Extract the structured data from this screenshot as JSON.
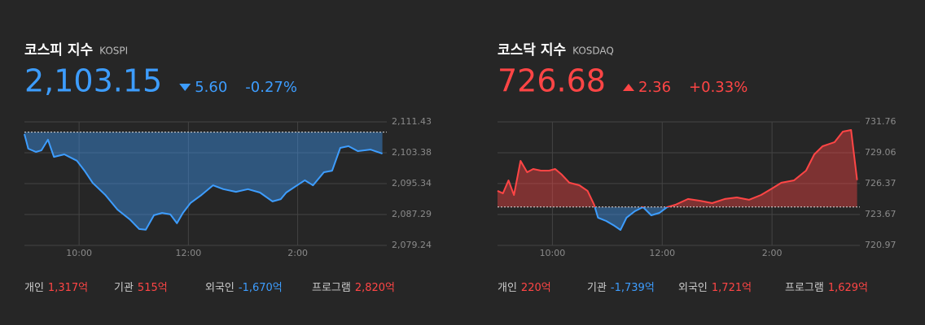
{
  "chart_data": [
    {
      "type": "line",
      "title": "코스피 지수",
      "subtitle": "KOSPI",
      "price": "2,103.15",
      "change": "5.60",
      "change_pct": "-0.27%",
      "x": [
        9.0,
        9.07,
        9.21,
        9.31,
        9.43,
        9.54,
        9.73,
        9.96,
        10.1,
        10.25,
        10.48,
        10.7,
        10.93,
        11.1,
        11.22,
        11.37,
        11.52,
        11.67,
        11.79,
        11.9,
        12.04,
        12.24,
        12.45,
        12.64,
        12.87,
        13.09,
        13.31,
        13.54,
        13.69,
        13.79,
        13.99,
        14.13,
        14.28,
        14.48,
        14.63,
        14.78,
        14.93,
        15.1,
        15.33,
        15.55
      ],
      "values": [
        2108.25,
        2104.44,
        2103.6,
        2104.0,
        2106.8,
        2102.3,
        2102.96,
        2101.3,
        2098.7,
        2095.5,
        2092.4,
        2088.6,
        2086.0,
        2083.5,
        2083.3,
        2087.1,
        2087.7,
        2087.3,
        2085.0,
        2087.7,
        2090.3,
        2092.4,
        2094.9,
        2093.9,
        2093.2,
        2093.9,
        2093.0,
        2090.7,
        2091.3,
        2093.0,
        2094.9,
        2096.2,
        2094.9,
        2098.3,
        2098.7,
        2104.65,
        2105.1,
        2103.8,
        2104.2,
        2103.15
      ],
      "reference": 2108.75,
      "xlim": [
        9,
        15.63
      ],
      "xticks": [
        {
          "value": 10,
          "label": "10:00"
        },
        {
          "value": 12,
          "label": "12:00"
        },
        {
          "value": 14,
          "label": "2:00"
        }
      ],
      "ylim": [
        2079.24,
        2111.43
      ],
      "yticks": [
        {
          "value": 2111.43,
          "label": "2,111.43"
        },
        {
          "value": 2103.38,
          "label": "2,103.38"
        },
        {
          "value": 2095.34,
          "label": "2,095.34"
        },
        {
          "value": 2087.29,
          "label": "2,087.29"
        },
        {
          "value": 2079.24,
          "label": "2,079.24"
        }
      ],
      "grid": true,
      "up_color": "#ff4545",
      "down_color": "#3d9dff",
      "investors": [
        {
          "name": "개인",
          "value": "1,317억"
        },
        {
          "name": "기관",
          "value": "515억"
        },
        {
          "name": "외국인",
          "value": "-1,670억"
        },
        {
          "name": "프로그램",
          "value": "2,820억"
        }
      ]
    },
    {
      "type": "line",
      "title": "코스닥 지수",
      "subtitle": "KOSDAQ",
      "price": "726.68",
      "change": "2.36",
      "change_pct": "+0.33%",
      "x": [
        9.0,
        9.1,
        9.2,
        9.3,
        9.42,
        9.54,
        9.65,
        9.79,
        9.94,
        10.05,
        10.17,
        10.31,
        10.49,
        10.64,
        10.76,
        10.83,
        10.98,
        11.13,
        11.24,
        11.35,
        11.5,
        11.65,
        11.8,
        11.95,
        12.09,
        12.24,
        12.47,
        12.69,
        12.91,
        13.14,
        13.36,
        13.58,
        13.8,
        14.0,
        14.17,
        14.4,
        14.62,
        14.77,
        14.92,
        15.14,
        15.29,
        15.44,
        15.55
      ],
      "values": [
        725.73,
        725.52,
        726.65,
        725.37,
        728.35,
        727.36,
        727.64,
        727.5,
        727.5,
        727.64,
        727.15,
        726.44,
        726.22,
        725.73,
        724.52,
        723.39,
        723.1,
        722.68,
        722.32,
        723.39,
        723.95,
        724.31,
        723.6,
        723.81,
        724.31,
        724.52,
        725.02,
        724.87,
        724.66,
        725.02,
        725.16,
        724.95,
        725.37,
        725.94,
        726.44,
        726.65,
        727.5,
        728.92,
        729.63,
        729.99,
        730.91,
        731.05,
        726.68
      ],
      "reference": 724.32,
      "xlim": [
        9,
        15.6
      ],
      "xticks": [
        {
          "value": 10,
          "label": "10:00"
        },
        {
          "value": 12,
          "label": "12:00"
        },
        {
          "value": 14,
          "label": "2:00"
        }
      ],
      "ylim": [
        720.97,
        731.76
      ],
      "yticks": [
        731.76,
        729.06,
        726.37,
        723.67,
        720.97
      ],
      "grid": true,
      "up_color": "#ff4545",
      "down_color": "#3d9dff",
      "investors": [
        {
          "name": "개인",
          "value": "220억"
        },
        {
          "name": "기관",
          "value": "-1,739억"
        },
        {
          "name": "외국인",
          "value": "1,721억"
        },
        {
          "name": "프로그램",
          "value": "1,629억"
        }
      ]
    }
  ]
}
